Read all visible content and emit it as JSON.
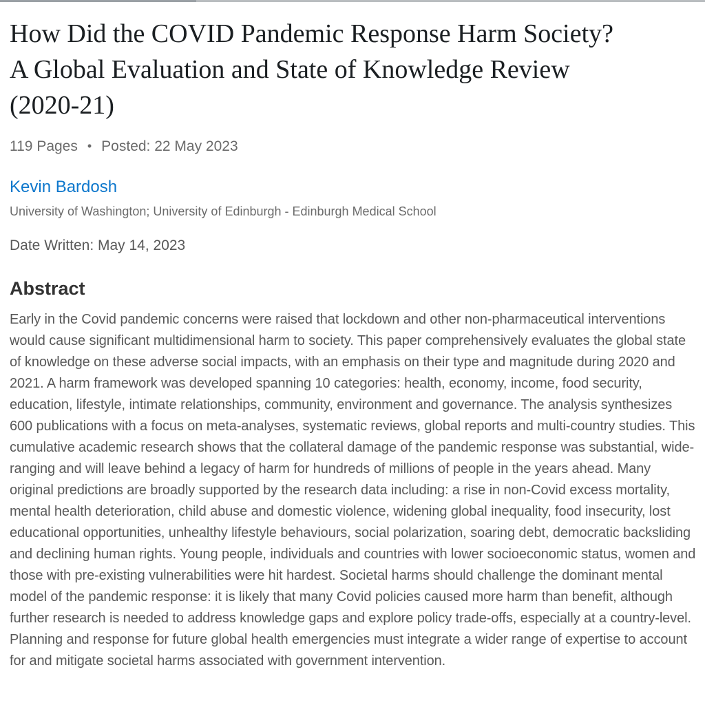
{
  "title": {
    "line1": "How Did the COVID Pandemic Response Harm Society?",
    "line2": "A Global Evaluation and State of Knowledge Review",
    "line3": "(2020-21)"
  },
  "meta": {
    "pages": "119 Pages",
    "separator": "•",
    "posted": "Posted: 22 May 2023"
  },
  "author": {
    "name": "Kevin Bardosh",
    "affiliation": "University of Washington; University of Edinburgh - Edinburgh Medical School"
  },
  "date_written": "Date Written: May 14, 2023",
  "abstract": {
    "heading": "Abstract",
    "text": "Early in the Covid pandemic concerns were raised that lockdown and other non-pharmaceutical interventions would cause significant multidimensional harm to society. This paper comprehensively evaluates the global state of knowledge on these adverse social impacts, with an emphasis on their type and magnitude during 2020 and 2021. A harm framework was developed spanning 10 categories: health, economy, income, food security, education, lifestyle, intimate relationships, community, environment and governance. The analysis synthesizes 600 publications with a focus on meta-analyses, systematic reviews, global reports and multi-country studies. This cumulative academic research shows that the collateral damage of the pandemic response was substantial, wide-ranging and will leave behind a legacy of harm for hundreds of millions of people in the years ahead. Many original predictions are broadly supported by the research data including: a rise in non-Covid excess mortality, mental health deterioration, child abuse and domestic violence, widening global inequality, food insecurity, lost educational opportunities, unhealthy lifestyle behaviours, social polarization, soaring debt, democratic backsliding and declining human rights. Young people, individuals and countries with lower socioeconomic status, women and those with pre-existing vulnerabilities were hit hardest. Societal harms should challenge the dominant mental model of the pandemic response: it is likely that many Covid policies caused more harm than benefit, although further research is needed to address knowledge gaps and explore policy trade-offs, especially at a country-level. Planning and response for future global health emergencies must integrate a wider range of expertise to account for and mitigate societal harms associated with government intervention."
  },
  "colors": {
    "link_blue": "#0d77cc",
    "title_text": "#1b1f22",
    "meta_gray": "#6b6b6b",
    "body_gray": "#595959",
    "heading_gray": "#333333",
    "top_bar_left": "#9aa0a5",
    "top_bar_right": "#b9bdc0"
  }
}
